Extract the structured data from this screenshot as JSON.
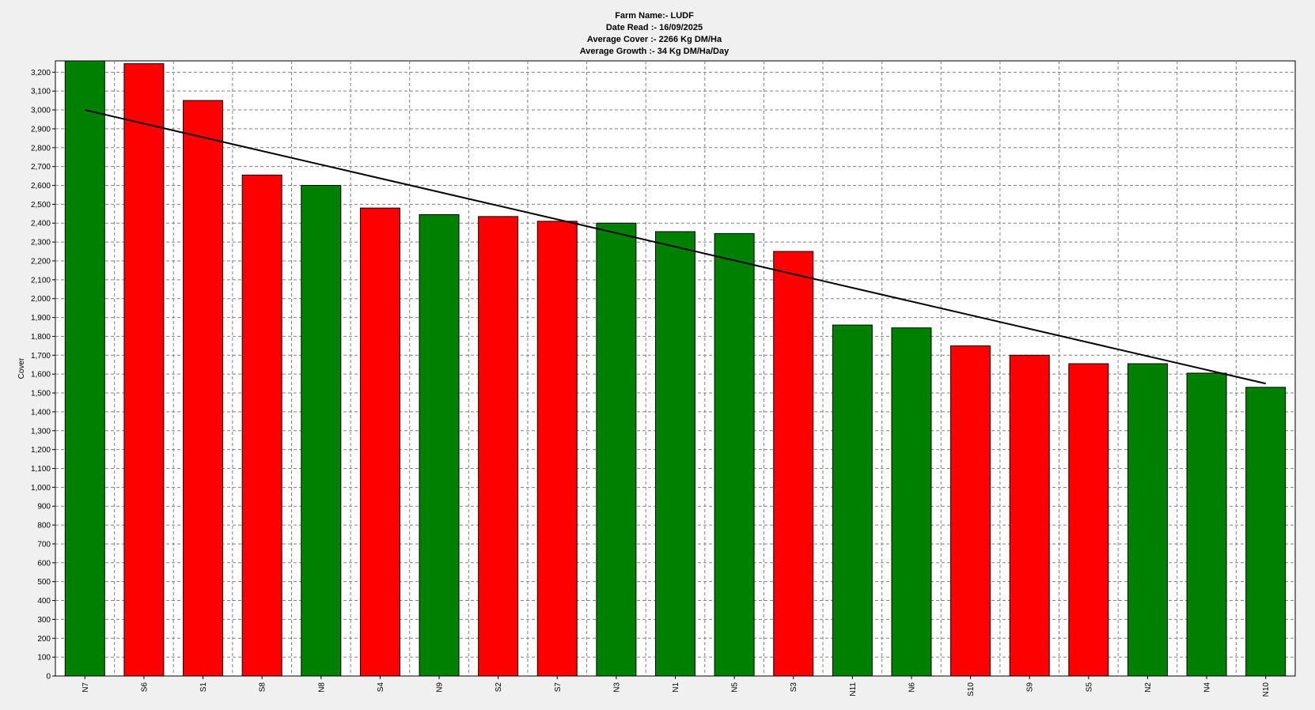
{
  "header": {
    "farm_name": "Farm Name:- LUDF",
    "date_read": "Date Read :-  16/09/2025",
    "average_cover": "Average Cover :-  2266 Kg DM/Ha",
    "average_growth": "Average Growth :-  34 Kg DM/Ha/Day"
  },
  "colors": {
    "background": "#f0f0f0",
    "plot_background": "#ffffff",
    "bar_green": "#008000",
    "bar_red": "#ff0000",
    "trend_line": "#000000",
    "grid": "#808080"
  },
  "chart_data": {
    "type": "bar",
    "title": "",
    "xlabel": "",
    "ylabel": "Cover",
    "ylim": [
      0,
      3260
    ],
    "ytick_step": 100,
    "grid": true,
    "legend": "none",
    "categories": [
      "N7",
      "S6",
      "S1",
      "S8",
      "N8",
      "S4",
      "N9",
      "S2",
      "S7",
      "N3",
      "N1",
      "N5",
      "S3",
      "N11",
      "N6",
      "S10",
      "S9",
      "S5",
      "N2",
      "N4",
      "N10"
    ],
    "values": [
      3260,
      3245,
      3050,
      2655,
      2600,
      2480,
      2445,
      2435,
      2410,
      2400,
      2355,
      2345,
      2250,
      1860,
      1845,
      1750,
      1700,
      1655,
      1655,
      1605,
      1530
    ],
    "bar_colors": [
      "green",
      "red",
      "red",
      "red",
      "green",
      "red",
      "green",
      "red",
      "red",
      "green",
      "green",
      "green",
      "red",
      "green",
      "green",
      "red",
      "red",
      "red",
      "green",
      "green",
      "green"
    ],
    "trend_line": {
      "start": {
        "category": "N7",
        "value": 3000
      },
      "end": {
        "category": "N10",
        "value": 1550
      }
    }
  }
}
